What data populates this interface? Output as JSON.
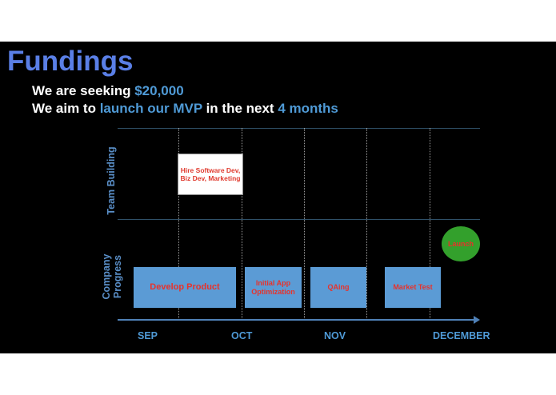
{
  "slide": {
    "title": "Fundings",
    "line1": {
      "pre": "We are seeking ",
      "amount": "$20,000"
    },
    "line2": {
      "pre": "We aim to ",
      "goal": "launch our MVP",
      "mid": " in the next ",
      "duration": "4 months"
    }
  },
  "timeline": {
    "rows": [
      "Team Building",
      "Company Progress"
    ],
    "months": [
      "SEP",
      "OCT",
      "NOV",
      "DECEMBER"
    ],
    "team_tasks": [
      {
        "label": "Hire Software Dev, Biz Dev, Marketing"
      }
    ],
    "progress_tasks": [
      {
        "label": "Develop Product"
      },
      {
        "label": "Initial App Optimization"
      },
      {
        "label": "QAing"
      },
      {
        "label": "Market Test"
      }
    ],
    "milestone": {
      "label": "Launch"
    }
  },
  "colors": {
    "title": "#5a7fe6",
    "highlight": "#4f9ad6",
    "task_fill": "#5b9bd5",
    "task_text": "#e8322a",
    "milestone_fill": "#33a02c"
  }
}
